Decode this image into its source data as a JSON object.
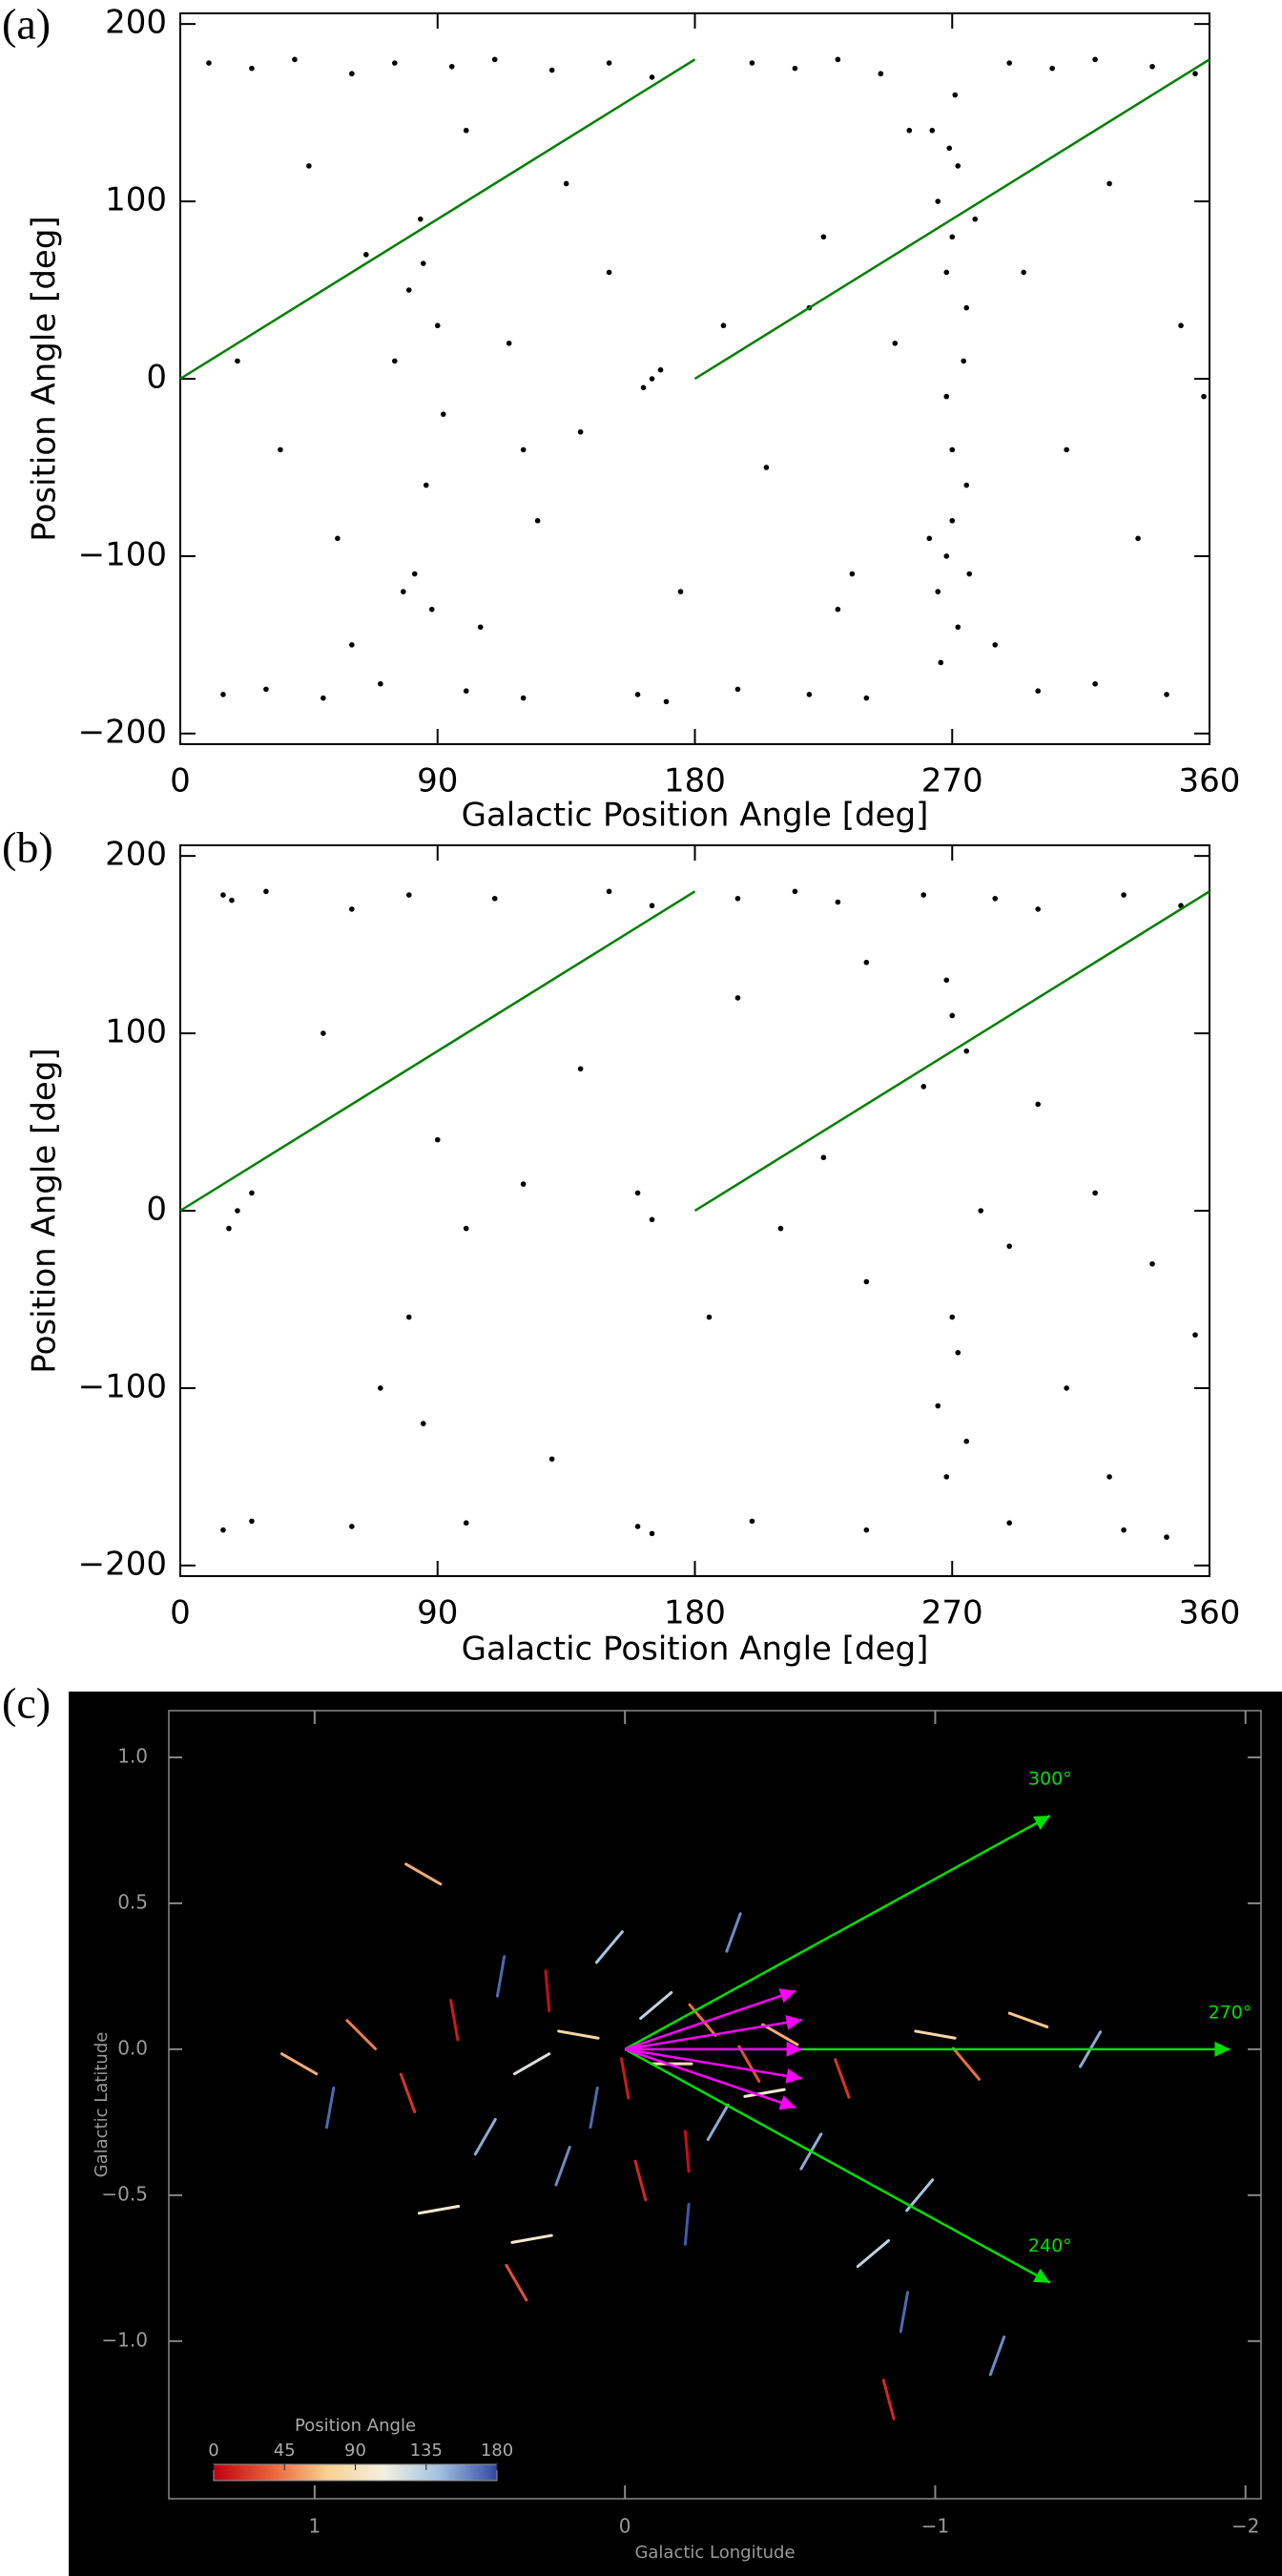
{
  "chart_data": [
    {
      "type": "scatter",
      "panel": "(a)",
      "xlabel": "Galactic Position Angle [deg]",
      "ylabel": "Position Angle [deg]",
      "xlim": [
        0,
        360
      ],
      "ylim": [
        -206,
        206
      ],
      "xticks": [
        0,
        90,
        180,
        270,
        360
      ],
      "yticks": [
        {
          "value": -200,
          "label": "−200"
        },
        {
          "value": -100,
          "label": "−100"
        },
        0,
        100,
        200
      ],
      "color": "#000000",
      "x": [
        265,
        270,
        272,
        268,
        275,
        263,
        270,
        268,
        275,
        265,
        272,
        270,
        278,
        262,
        274,
        268,
        271,
        266,
        276,
        269,
        10,
        25,
        40,
        60,
        75,
        95,
        110,
        130,
        150,
        165,
        200,
        215,
        230,
        245,
        290,
        305,
        320,
        340,
        355,
        15,
        30,
        50,
        70,
        100,
        120,
        160,
        170,
        195,
        220,
        240,
        300,
        320,
        345,
        80,
        85,
        82,
        88,
        78,
        90,
        84,
        86,
        92,
        75,
        165,
        168,
        162,
        20,
        35,
        45,
        55,
        65,
        100,
        105,
        115,
        125,
        135,
        140,
        150,
        175,
        190,
        205,
        225,
        235,
        250,
        255,
        285,
        295,
        310,
        325,
        335,
        350,
        358,
        230,
        220,
        120,
        60
      ],
      "y": [
        100,
        80,
        120,
        60,
        40,
        140,
        -80,
        -100,
        -60,
        -120,
        -140,
        -40,
        90,
        -90,
        10,
        -10,
        160,
        -160,
        -110,
        130,
        178,
        175,
        180,
        172,
        178,
        176,
        180,
        174,
        178,
        170,
        178,
        175,
        180,
        172,
        178,
        175,
        180,
        176,
        172,
        -178,
        -175,
        -180,
        -172,
        -176,
        -180,
        -178,
        -182,
        -175,
        -178,
        -180,
        -176,
        -172,
        -178,
        50,
        65,
        -110,
        -130,
        -120,
        30,
        90,
        -60,
        -20,
        10,
        0,
        5,
        -5,
        10,
        -40,
        120,
        -90,
        70,
        140,
        -140,
        20,
        -80,
        110,
        -30,
        60,
        -120,
        30,
        -50,
        80,
        -110,
        20,
        140,
        -150,
        60,
        -40,
        110,
        -90,
        30,
        -10,
        -130,
        40,
        -40,
        -150
      ],
      "lines": [
        {
          "color": "#008000",
          "x": [
            0,
            180
          ],
          "y": [
            0,
            180
          ]
        },
        {
          "color": "#008000",
          "x": [
            180,
            360
          ],
          "y": [
            0,
            180
          ]
        }
      ]
    },
    {
      "type": "scatter",
      "panel": "(b)",
      "xlabel": "Galactic Position Angle [deg]",
      "ylabel": "Position Angle [deg]",
      "xlim": [
        0,
        360
      ],
      "ylim": [
        -206,
        206
      ],
      "xticks": [
        0,
        90,
        180,
        270,
        360
      ],
      "yticks": [
        {
          "value": -200,
          "label": "−200"
        },
        {
          "value": -100,
          "label": "−100"
        },
        0,
        100,
        200
      ],
      "color": "#000000",
      "x": [
        15,
        18,
        30,
        60,
        80,
        110,
        150,
        165,
        195,
        215,
        230,
        260,
        285,
        300,
        330,
        350,
        15,
        25,
        60,
        100,
        160,
        165,
        200,
        240,
        290,
        330,
        345,
        20,
        17,
        25,
        85,
        80,
        90,
        100,
        120,
        160,
        165,
        210,
        225,
        240,
        260,
        270,
        275,
        268,
        272,
        270,
        265,
        275,
        268,
        280,
        290,
        300,
        310,
        320,
        340,
        355,
        50,
        70,
        130,
        140,
        185,
        195,
        240,
        325
      ],
      "y": [
        178,
        175,
        180,
        170,
        178,
        176,
        180,
        172,
        176,
        180,
        174,
        178,
        176,
        170,
        178,
        172,
        -180,
        -175,
        -178,
        -176,
        -178,
        -182,
        -175,
        -180,
        -176,
        -180,
        -184,
        0,
        -10,
        10,
        -120,
        -60,
        40,
        -10,
        15,
        10,
        -5,
        -10,
        30,
        -40,
        70,
        110,
        90,
        130,
        -80,
        -60,
        -110,
        -130,
        -150,
        0,
        -20,
        60,
        -100,
        10,
        -30,
        -70,
        100,
        -100,
        -140,
        80,
        -60,
        120,
        140,
        -150
      ],
      "lines": [
        {
          "color": "#008000",
          "x": [
            0,
            180
          ],
          "y": [
            0,
            180
          ]
        },
        {
          "color": "#008000",
          "x": [
            180,
            360
          ],
          "y": [
            0,
            180
          ]
        }
      ]
    },
    {
      "type": "vector-map",
      "panel": "(c)",
      "xlabel": "Galactic Longitude",
      "ylabel": "Galactic Latitude",
      "xlim": [
        1.47,
        -2.05
      ],
      "ylim": [
        -1.54,
        1.16
      ],
      "xticks": [
        1,
        0,
        {
          "value": -1,
          "label": "−1"
        },
        {
          "value": -2,
          "label": "−2"
        }
      ],
      "yticks": [
        {
          "value": 1.0,
          "label": "1.0"
        },
        0.5,
        {
          "value": 0.0,
          "label": "0.0"
        },
        {
          "value": -0.5,
          "label": "−0.5"
        },
        {
          "value": -1.0,
          "label": "−1.0"
        }
      ],
      "colorbar": {
        "label": "Position Angle",
        "clim": [
          0,
          180
        ],
        "ticks": [
          0,
          45,
          90,
          135,
          180
        ],
        "colors": [
          "#c00010",
          "#e8603a",
          "#f8d090",
          "#f4f0e0",
          "#a0c0e0",
          "#3048a0"
        ]
      },
      "segments": {
        "l": [
          1.05,
          0.95,
          0.85,
          0.7,
          0.6,
          0.55,
          0.45,
          0.4,
          0.35,
          0.3,
          0.25,
          0.2,
          0.15,
          0.1,
          0.05,
          0.0,
          -0.05,
          -0.1,
          -0.15,
          -0.2,
          -0.25,
          -0.3,
          -0.35,
          -0.4,
          -0.45,
          -0.5,
          -0.6,
          -0.7,
          -0.8,
          -0.9,
          -1.0,
          -1.1,
          -1.2,
          -1.3,
          -0.85,
          -0.95,
          0.65,
          0.3,
          -0.2,
          -1.5
        ],
        "b": [
          -0.05,
          -0.2,
          0.05,
          -0.15,
          -0.55,
          0.1,
          -0.3,
          0.25,
          -0.8,
          -0.05,
          0.2,
          -0.4,
          0.05,
          -0.2,
          0.35,
          -0.1,
          -0.45,
          0.15,
          -0.05,
          -0.6,
          0.1,
          -0.25,
          0.4,
          -0.05,
          -0.15,
          0.05,
          -0.35,
          -0.1,
          -0.7,
          -0.9,
          0.05,
          -0.05,
          -1.05,
          0.1,
          -1.2,
          -0.5,
          0.6,
          -0.65,
          -0.35,
          0.0
        ],
        "angle": [
          60,
          170,
          45,
          20,
          100,
          10,
          150,
          170,
          30,
          120,
          5,
          160,
          80,
          170,
          140,
          10,
          15,
          130,
          90,
          175,
          40,
          150,
          160,
          30,
          100,
          60,
          150,
          20,
          130,
          170,
          80,
          40,
          160,
          70,
          15,
          140,
          60,
          100,
          5,
          150
        ]
      },
      "arrows": [
        {
          "label": "300°",
          "color": "#00e000",
          "x": [
            0,
            -1.37
          ],
          "y": [
            0,
            0.8
          ]
        },
        {
          "label": "270°",
          "color": "#00e000",
          "x": [
            0,
            -1.95
          ],
          "y": [
            0,
            0.0
          ]
        },
        {
          "label": "240°",
          "color": "#00e000",
          "x": [
            0,
            -1.37
          ],
          "y": [
            0,
            -0.8
          ]
        },
        {
          "color": "#ff00ff",
          "x": [
            0,
            -0.55
          ],
          "y": [
            0,
            0.2
          ]
        },
        {
          "color": "#ff00ff",
          "x": [
            0,
            -0.57
          ],
          "y": [
            0,
            0.1
          ]
        },
        {
          "color": "#ff00ff",
          "x": [
            0,
            -0.57
          ],
          "y": [
            0,
            0.0
          ]
        },
        {
          "color": "#ff00ff",
          "x": [
            0,
            -0.57
          ],
          "y": [
            0,
            -0.1
          ]
        },
        {
          "color": "#ff00ff",
          "x": [
            0,
            -0.55
          ],
          "y": [
            0,
            -0.2
          ]
        }
      ]
    }
  ]
}
